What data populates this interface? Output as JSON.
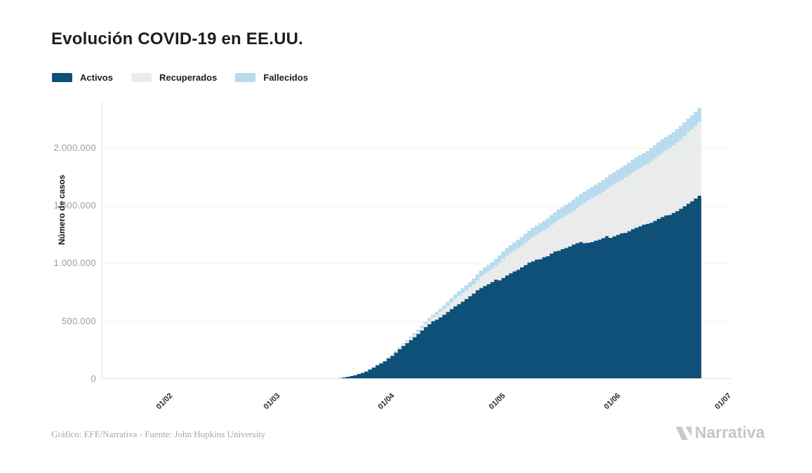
{
  "page": {
    "title": "Evolución COVID-19 en EE.UU.",
    "footer_credit": "Gráfico: EFE/Narrativa - Fuente: John Hopkins University",
    "logo_text": "Narrativa"
  },
  "legend": {
    "items": [
      {
        "label": "Activos",
        "color": "#0e5078"
      },
      {
        "label": "Recuperados",
        "color": "#eaebeb"
      },
      {
        "label": "Fallecidos",
        "color": "#b8dcee"
      }
    ]
  },
  "chart_data": {
    "type": "bar",
    "stacked": true,
    "title": "Evolución COVID-19 en EE.UU.",
    "xlabel": "",
    "ylabel": "Número de casos",
    "ylim": [
      0,
      2400000
    ],
    "grid": true,
    "legend_position": "top-left",
    "x_domain": [
      "2020-01-14",
      "2020-07-02"
    ],
    "bars_start_date": "2020-03-01",
    "x_ticks": [
      {
        "date": "2020-02-01",
        "label": "01/02"
      },
      {
        "date": "2020-03-01",
        "label": "01/03"
      },
      {
        "date": "2020-04-01",
        "label": "01/04"
      },
      {
        "date": "2020-05-01",
        "label": "01/05"
      },
      {
        "date": "2020-06-01",
        "label": "01/06"
      },
      {
        "date": "2020-07-01",
        "label": "01/07"
      }
    ],
    "y_ticks": [
      {
        "value": 0,
        "label": "0"
      },
      {
        "value": 500000,
        "label": "500.000"
      },
      {
        "value": 1000000,
        "label": "1.000.000"
      },
      {
        "value": 1500000,
        "label": "1.500.000"
      },
      {
        "value": 2000000,
        "label": "2.000.000"
      }
    ],
    "series": [
      {
        "name": "Activos",
        "color": "#0e5078",
        "values": [
          74,
          94,
          117,
          147,
          209,
          305,
          418,
          520,
          682,
          923,
          1237,
          1611,
          2120,
          2661,
          3424,
          4530,
          6296,
          7560,
          13369,
          18709,
          25006,
          32683,
          42942,
          52686,
          64475,
          81946,
          99207,
          118380,
          135754,
          153234,
          178655,
          199796,
          228460,
          258792,
          285791,
          310005,
          336303,
          361662,
          390789,
          419474,
          449159,
          474655,
          500293,
          513578,
          534075,
          555928,
          580021,
          604383,
          628686,
          648066,
          669903,
          692217,
          716363,
          740278,
          768419,
          787126,
          804541,
          821360,
          839380,
          860221,
          854511,
          874378,
          896707,
          915210,
          931625,
          946107,
          966085,
          986325,
          1007756,
          1018212,
          1033565,
          1036912,
          1054454,
          1062862,
          1085462,
          1104547,
          1110690,
          1124930,
          1134783,
          1147255,
          1164102,
          1176134,
          1186396,
          1175660,
          1178788,
          1184925,
          1197095,
          1207226,
          1220138,
          1236521,
          1221845,
          1235450,
          1247899,
          1261772,
          1265087,
          1279447,
          1296989,
          1309410,
          1322344,
          1335983,
          1343374,
          1352885,
          1369235,
          1386931,
          1402484,
          1416510,
          1420565,
          1437265,
          1453382,
          1473503,
          1495134,
          1517940,
          1538772,
          1561609,
          1586053
        ]
      },
      {
        "name": "Recuperados",
        "color": "#eaebeb",
        "values": [
          0,
          0,
          0,
          0,
          0,
          0,
          0,
          0,
          0,
          8,
          8,
          12,
          12,
          12,
          12,
          17,
          17,
          105,
          108,
          147,
          176,
          178,
          348,
          348,
          361,
          681,
          869,
          1072,
          2665,
          4435,
          5644,
          8474,
          9001,
          9707,
          14652,
          17448,
          19581,
          21763,
          23559,
          25410,
          28790,
          31270,
          32988,
          43482,
          47763,
          52096,
          54703,
          58545,
          64840,
          70337,
          72329,
          75204,
          77366,
          80203,
          85922,
          99079,
          106988,
          111424,
          115936,
          120720,
          153947,
          164015,
          169463,
          175382,
          180152,
          187180,
          189791,
          195036,
          198993,
          212534,
          216169,
          230287,
          232733,
          243430,
          246414,
          250747,
          268376,
          272265,
          283178,
          289392,
          294312,
          306451,
          318620,
          350135,
          366736,
          379157,
          384902,
          391508,
          399991,
          406446,
          444758,
          450339,
          458231,
          463868,
          479258,
          485002,
          491706,
          500849,
          506367,
          509513,
          518522,
          533504,
          540292,
          547386,
          556606,
          561816,
          577334,
          583503,
          592191,
          599115,
          606715,
          617460,
          622133,
          630291,
          640198
        ]
      },
      {
        "name": "Fallecidos",
        "color": "#b8dcee",
        "values": [
          1,
          6,
          7,
          11,
          12,
          14,
          17,
          21,
          22,
          28,
          36,
          40,
          47,
          54,
          63,
          85,
          108,
          118,
          200,
          244,
          307,
          417,
          557,
          706,
          942,
          1209,
          1581,
          2026,
          2467,
          2978,
          3873,
          5102,
          5992,
          7087,
          8407,
          9619,
          10783,
          12798,
          14704,
          16553,
          18586,
          20471,
          22032,
          23559,
          25832,
          28326,
          32868,
          36778,
          38671,
          40683,
          42094,
          44444,
          46622,
          48689,
          51017,
          51949,
          54256,
          55413,
          57266,
          58968,
          60966,
          65068,
          66369,
          67448,
          68598,
          71064,
          73455,
          75662,
          77180,
          78795,
          79526,
          80682,
          82387,
          84114,
          85898,
          87530,
          88754,
          89562,
          90347,
          91921,
          93439,
          94702,
          95921,
          96875,
          97722,
          98220,
          98916,
          100442,
          101621,
          102836,
          103781,
          104383,
          105147,
          106181,
          107175,
          108211,
          109143,
          109802,
          110220,
          110925,
          111907,
          112924,
          113820,
          114669,
          115436,
          115732,
          116127,
          116963,
          117717,
          118434,
          119112,
          119719,
          120064,
          120402,
          120771
        ]
      }
    ]
  }
}
